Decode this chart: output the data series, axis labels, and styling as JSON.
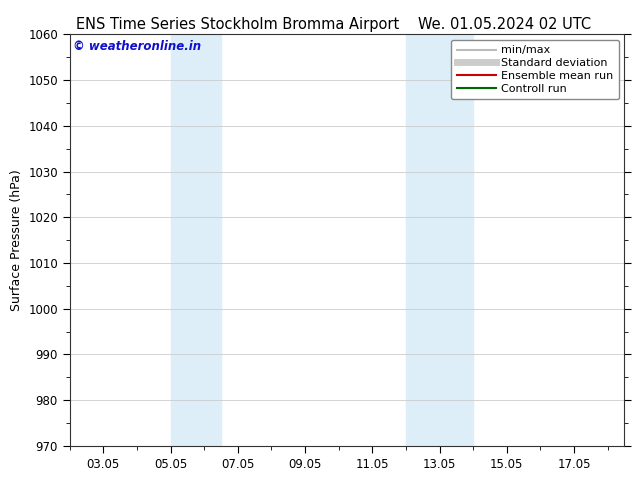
{
  "title_left": "ENS Time Series Stockholm Bromma Airport",
  "title_right": "We. 01.05.2024 02 UTC",
  "ylabel": "Surface Pressure (hPa)",
  "ylim": [
    970,
    1060
  ],
  "yticks": [
    970,
    980,
    990,
    1000,
    1010,
    1020,
    1030,
    1040,
    1050,
    1060
  ],
  "xlim": [
    1.0,
    17.5
  ],
  "xtick_labels": [
    "03.05",
    "05.05",
    "07.05",
    "09.05",
    "11.05",
    "13.05",
    "15.05",
    "17.05"
  ],
  "xtick_positions": [
    2,
    4,
    6,
    8,
    10,
    12,
    14,
    16
  ],
  "shade_bands": [
    {
      "start": 4.0,
      "end": 5.5,
      "color": "#ddeef8"
    },
    {
      "start": 11.0,
      "end": 13.0,
      "color": "#ddeef8"
    }
  ],
  "legend_entries": [
    {
      "label": "min/max",
      "color": "#bbbbbb",
      "lw": 1.5
    },
    {
      "label": "Standard deviation",
      "color": "#cccccc",
      "lw": 5
    },
    {
      "label": "Ensemble mean run",
      "color": "#cc0000",
      "lw": 1.5
    },
    {
      "label": "Controll run",
      "color": "#006600",
      "lw": 1.5
    }
  ],
  "watermark": "© weatheronline.in",
  "watermark_color": "#1111cc",
  "bg_color": "#ffffff",
  "plot_bg_color": "#ffffff",
  "grid_color": "#cccccc",
  "title_fontsize": 10.5,
  "ylabel_fontsize": 9,
  "tick_fontsize": 8.5,
  "legend_fontsize": 8
}
